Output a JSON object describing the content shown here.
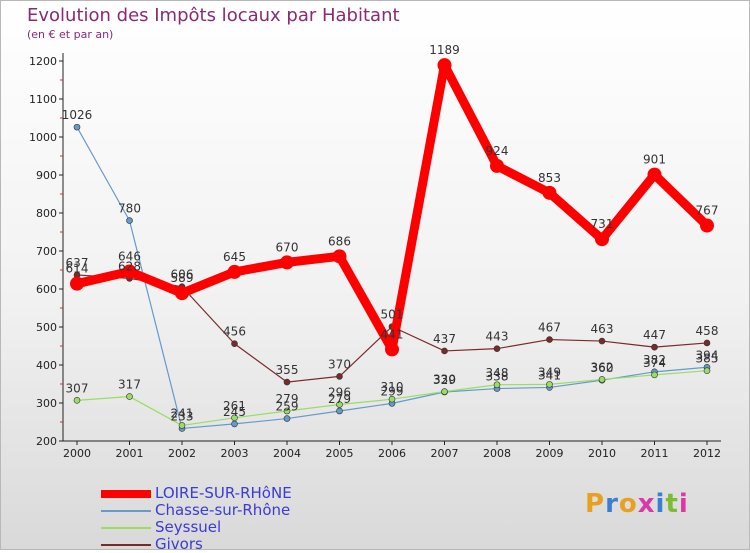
{
  "title": "Evolution des Impôts locaux par Habitant",
  "subtitle": "(en € et par an)",
  "brand": "Proxiti",
  "chart_data": {
    "type": "line",
    "title": "Evolution des Impôts locaux par Habitant",
    "subtitle": "(en € et par an)",
    "xlabel": "",
    "ylabel": "",
    "x": [
      "2000",
      "2001",
      "2002",
      "2003",
      "2004",
      "2005",
      "2006",
      "2007",
      "2008",
      "2009",
      "2010",
      "2011",
      "2012"
    ],
    "yticks": [
      200,
      300,
      400,
      500,
      600,
      700,
      800,
      900,
      1000,
      1100,
      1200
    ],
    "ylim": [
      200,
      1200
    ],
    "grid": false,
    "legend_position": "bottom-left",
    "series": [
      {
        "name": "LOIRE-SUR-RHôNE",
        "color": "#ff0000",
        "values": [
          614,
          646,
          589,
          645,
          670,
          686,
          441,
          1189,
          924,
          853,
          731,
          901,
          767
        ]
      },
      {
        "name": "Chasse-sur-Rhône",
        "color": "#6699cc",
        "values": [
          1026,
          780,
          233,
          245,
          259,
          279,
          299,
          329,
          338,
          341,
          360,
          382,
          394
        ]
      },
      {
        "name": "Seyssuel",
        "color": "#99dd66",
        "values": [
          307,
          317,
          241,
          261,
          279,
          296,
          310,
          330,
          348,
          349,
          362,
          374,
          385
        ]
      },
      {
        "name": "Givors",
        "color": "#7a2a2a",
        "values": [
          637,
          628,
          606,
          456,
          355,
          370,
          501,
          437,
          443,
          467,
          463,
          447,
          458
        ]
      }
    ]
  }
}
